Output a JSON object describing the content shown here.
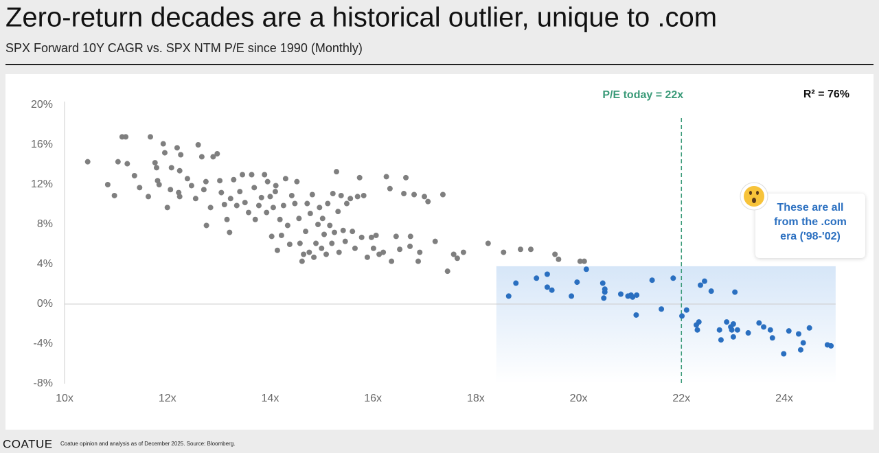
{
  "chart_data": {
    "type": "scatter",
    "title": "Zero-return decades are a historical outlier, unique to .com",
    "subtitle": "SPX Forward 10Y CAGR vs. SPX NTM P/E since 1990 (Monthly)",
    "xlim": [
      10,
      25
    ],
    "ylim": [
      -8,
      20
    ],
    "xticks": [
      {
        "value": 10,
        "label": "10x"
      },
      {
        "value": 12,
        "label": "12x"
      },
      {
        "value": 14,
        "label": "14x"
      },
      {
        "value": 16,
        "label": "16x"
      },
      {
        "value": 18,
        "label": "18x"
      },
      {
        "value": 20,
        "label": "20x"
      },
      {
        "value": 22,
        "label": "22x"
      },
      {
        "value": 24,
        "label": "24x"
      }
    ],
    "yticks": [
      {
        "value": -8,
        "label": "-8%"
      },
      {
        "value": -4,
        "label": "-4%"
      },
      {
        "value": 0,
        "label": "0%"
      },
      {
        "value": 4,
        "label": "4%"
      },
      {
        "value": 8,
        "label": "8%"
      },
      {
        "value": 12,
        "label": "12%"
      },
      {
        "value": 16,
        "label": "16%"
      },
      {
        "value": 20,
        "label": "20%"
      }
    ],
    "zero_line": true,
    "series": [
      {
        "color": "#7f7f7f",
        "x": [
          10.45,
          10.84,
          10.97,
          11.04,
          11.12,
          11.19,
          11.22,
          11.36,
          11.46,
          11.63,
          11.67,
          11.76,
          11.79,
          11.81,
          11.84,
          11.92,
          11.95,
          12.0,
          12.06,
          12.08,
          12.19,
          12.26,
          12.24,
          12.22,
          12.24,
          12.39,
          12.47,
          12.55,
          12.6,
          12.67,
          12.71,
          12.75,
          12.76,
          12.84,
          12.89,
          12.97,
          13.02,
          13.05,
          13.11,
          13.16,
          13.21,
          13.23,
          13.29,
          13.35,
          13.41,
          13.46,
          13.51,
          13.58,
          13.64,
          13.69,
          13.71,
          13.78,
          13.83,
          13.89,
          13.93,
          13.95,
          14.0,
          14.03,
          14.06,
          14.1,
          14.11,
          14.14,
          14.19,
          14.22,
          14.26,
          14.3,
          14.34,
          14.38,
          14.42,
          14.48,
          14.52,
          14.56,
          14.58,
          14.62,
          14.65,
          14.69,
          14.72,
          14.76,
          14.78,
          14.82,
          14.85,
          14.89,
          14.93,
          14.96,
          15.0,
          15.02,
          15.05,
          15.09,
          15.12,
          15.16,
          15.2,
          15.22,
          15.25,
          15.29,
          15.32,
          15.34,
          15.38,
          15.42,
          15.46,
          15.49,
          15.56,
          15.6,
          15.65,
          15.7,
          15.74,
          15.78,
          15.82,
          15.89,
          15.97,
          16.01,
          16.06,
          16.12,
          16.2,
          16.26,
          16.33,
          16.36,
          16.45,
          16.52,
          16.6,
          16.64,
          16.72,
          16.73,
          16.8,
          16.88,
          16.91,
          17.0,
          17.07,
          17.21,
          17.36,
          17.45,
          17.57,
          17.64,
          17.76,
          18.24,
          18.54,
          18.87,
          19.07,
          19.54,
          19.61,
          20.03,
          20.11
        ],
        "values": [
          14.3,
          12.0,
          10.9,
          14.3,
          16.8,
          16.8,
          14.1,
          12.9,
          11.7,
          10.8,
          16.8,
          14.2,
          13.7,
          12.4,
          12.0,
          16.1,
          15.2,
          9.7,
          11.5,
          13.7,
          15.7,
          15.0,
          13.4,
          11.2,
          10.8,
          12.6,
          11.9,
          10.6,
          16.0,
          14.8,
          11.5,
          12.3,
          7.9,
          9.7,
          14.8,
          15.1,
          12.4,
          11.2,
          10.0,
          8.5,
          7.2,
          10.6,
          12.5,
          9.9,
          11.3,
          13.0,
          10.2,
          9.2,
          13.0,
          11.7,
          8.5,
          9.9,
          10.7,
          13.0,
          9.2,
          12.3,
          10.8,
          6.8,
          9.7,
          11.3,
          11.9,
          5.4,
          8.5,
          6.9,
          9.9,
          12.6,
          7.9,
          6.0,
          10.9,
          10.1,
          12.3,
          8.6,
          6.1,
          4.3,
          5.0,
          7.3,
          10.1,
          5.2,
          9.1,
          11.0,
          4.7,
          6.1,
          8.0,
          9.7,
          5.6,
          8.6,
          7.0,
          5.0,
          10.1,
          7.9,
          6.1,
          11.1,
          7.2,
          13.3,
          9.3,
          5.2,
          10.9,
          7.4,
          6.3,
          10.1,
          10.6,
          7.3,
          5.6,
          10.8,
          12.7,
          6.7,
          10.9,
          4.7,
          6.7,
          5.6,
          6.9,
          5.0,
          5.2,
          12.8,
          11.6,
          4.3,
          6.8,
          5.5,
          11.1,
          12.7,
          5.8,
          6.8,
          11.0,
          4.3,
          5.2,
          10.8,
          10.3,
          6.3,
          11.0,
          3.3,
          5.0,
          4.6,
          5.2,
          6.1,
          5.2,
          5.5,
          5.5,
          5.0,
          4.5,
          4.3,
          4.3
        ]
      },
      {
        "color": "#2a6fc0",
        "x": [
          18.64,
          18.78,
          19.18,
          19.39,
          19.39,
          19.48,
          19.86,
          19.97,
          20.15,
          20.47,
          20.51,
          20.51,
          20.49,
          20.82,
          20.96,
          21.02,
          21.05,
          21.13,
          21.12,
          21.43,
          21.61,
          21.84,
          22.01,
          22.1,
          22.29,
          22.31,
          22.34,
          22.37,
          22.45,
          22.58,
          22.74,
          22.77,
          22.88,
          22.96,
          22.98,
          23.01,
          23.04,
          23.01,
          23.09,
          23.3,
          23.51,
          23.6,
          23.73,
          23.77,
          23.99,
          24.09,
          24.28,
          24.32,
          24.37,
          24.49,
          24.84,
          24.91
        ],
        "values": [
          0.8,
          2.1,
          2.6,
          3.0,
          1.7,
          1.4,
          0.8,
          2.2,
          3.5,
          2.1,
          1.5,
          1.2,
          0.6,
          1.0,
          0.8,
          0.9,
          0.7,
          0.9,
          -1.1,
          2.4,
          -0.5,
          2.6,
          -1.2,
          -0.6,
          -2.1,
          -2.6,
          -1.8,
          1.9,
          2.3,
          1.3,
          -2.6,
          -3.6,
          -1.8,
          -2.3,
          -2.6,
          -3.3,
          1.2,
          -2.0,
          -2.6,
          -2.9,
          -1.9,
          -2.3,
          -2.6,
          -3.4,
          -5.0,
          -2.7,
          -3.0,
          -4.6,
          -3.9,
          -2.4,
          -4.1,
          -4.2
        ]
      }
    ],
    "highlight": {
      "x_from": 18.4,
      "y_to": 3.8
    },
    "reference_line": {
      "x": 22,
      "label": "P/E today = 22x",
      "color": "#3a9a78"
    },
    "r_squared": "R² = 76%",
    "callout": "These are all from the .com era ('98-'02)",
    "brand": "COATUE",
    "footnote": "Coatue opinion and analysis as of December 2025. Source: Bloomberg."
  }
}
